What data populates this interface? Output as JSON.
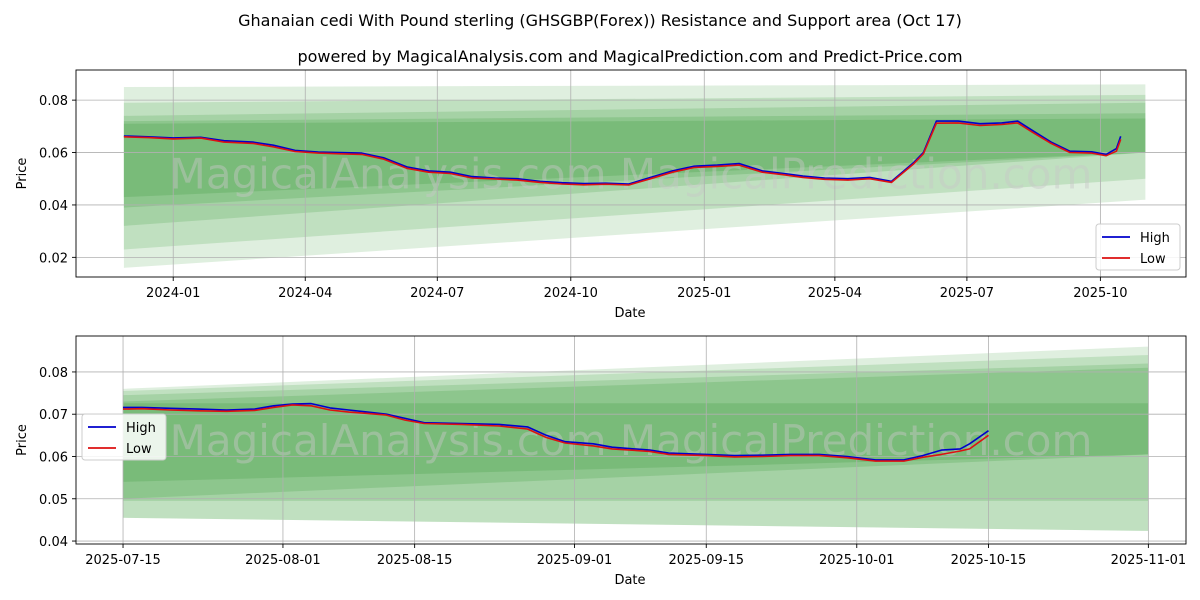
{
  "figure": {
    "title": "Ghanaian cedi With Pound sterling (GHSGBP(Forex)) Resistance and Support area (Oct 17)",
    "subtitle": "powered by MagicalAnalysis.com and MagicalPrediction.com and Predict-Price.com",
    "watermark": "MagicalAnalysis.com   MagicalPrediction.com"
  },
  "colors": {
    "high": "#0000cc",
    "low": "#dd1111",
    "band": "#3a9a3a",
    "grid": "#b0b0b0"
  },
  "chart_data": [
    {
      "type": "line",
      "title": "",
      "xlabel": "Date",
      "ylabel": "Price",
      "x_ticks": [
        "2024-01",
        "2024-04",
        "2024-07",
        "2024-10",
        "2025-01",
        "2025-04",
        "2025-07",
        "2025-10"
      ],
      "y_ticks": [
        "0.02",
        "0.04",
        "0.06",
        "0.08"
      ],
      "xlim": [
        "2023-10-26",
        "2025-11-29"
      ],
      "ylim": [
        0.0125,
        0.0915
      ],
      "grid": true,
      "legend": "lower-right",
      "legend_entries": [
        "High",
        "Low"
      ],
      "bands": {
        "start": "2023-11-28",
        "end": "2025-11-01",
        "start_ranges": [
          [
            0.016,
            0.085
          ],
          [
            0.023,
            0.079
          ],
          [
            0.032,
            0.074
          ],
          [
            0.039,
            0.072
          ],
          [
            0.043,
            0.071
          ]
        ],
        "end_ranges": [
          [
            0.042,
            0.086
          ],
          [
            0.05,
            0.082
          ],
          [
            0.06,
            0.079
          ],
          [
            0.06,
            0.075
          ],
          [
            0.06,
            0.073
          ]
        ]
      },
      "x": [
        "2023-11-28",
        "2023-12-15",
        "2024-01-01",
        "2024-01-20",
        "2024-02-05",
        "2024-02-25",
        "2024-03-10",
        "2024-03-25",
        "2024-04-10",
        "2024-04-25",
        "2024-05-10",
        "2024-05-25",
        "2024-06-10",
        "2024-06-25",
        "2024-07-10",
        "2024-07-25",
        "2024-08-10",
        "2024-08-25",
        "2024-09-10",
        "2024-09-25",
        "2024-10-10",
        "2024-10-25",
        "2024-11-10",
        "2024-11-25",
        "2024-12-10",
        "2024-12-25",
        "2025-01-10",
        "2025-01-25",
        "2025-02-10",
        "2025-02-25",
        "2025-03-10",
        "2025-03-25",
        "2025-04-10",
        "2025-04-25",
        "2025-05-10",
        "2025-05-25",
        "2025-06-01",
        "2025-06-10",
        "2025-06-25",
        "2025-07-10",
        "2025-07-25",
        "2025-08-05",
        "2025-08-15",
        "2025-08-28",
        "2025-09-10",
        "2025-09-25",
        "2025-10-05",
        "2025-10-12",
        "2025-10-15"
      ],
      "series": [
        {
          "name": "High",
          "values": [
            0.0663,
            0.066,
            0.0656,
            0.0658,
            0.0645,
            0.064,
            0.0628,
            0.0608,
            0.0602,
            0.06,
            0.0598,
            0.058,
            0.0545,
            0.053,
            0.0525,
            0.0508,
            0.0503,
            0.05,
            0.049,
            0.0485,
            0.0482,
            0.0483,
            0.048,
            0.0505,
            0.053,
            0.0548,
            0.0552,
            0.0558,
            0.053,
            0.052,
            0.051,
            0.0503,
            0.05,
            0.0505,
            0.049,
            0.056,
            0.06,
            0.072,
            0.072,
            0.071,
            0.0713,
            0.072,
            0.0685,
            0.064,
            0.0605,
            0.0603,
            0.0593,
            0.0615,
            0.0662
          ]
        },
        {
          "name": "Low",
          "values": [
            0.066,
            0.0657,
            0.0652,
            0.0655,
            0.064,
            0.0635,
            0.0622,
            0.0604,
            0.0598,
            0.0595,
            0.0593,
            0.0575,
            0.054,
            0.0525,
            0.052,
            0.0503,
            0.0499,
            0.0495,
            0.0486,
            0.048,
            0.0477,
            0.0479,
            0.0476,
            0.05,
            0.0525,
            0.0543,
            0.0547,
            0.0552,
            0.0525,
            0.0515,
            0.0505,
            0.0498,
            0.0495,
            0.05,
            0.0486,
            0.0555,
            0.0595,
            0.0712,
            0.0713,
            0.0703,
            0.0707,
            0.0713,
            0.0678,
            0.0635,
            0.06,
            0.0598,
            0.0588,
            0.0605,
            0.065
          ]
        }
      ]
    },
    {
      "type": "line",
      "title": "",
      "xlabel": "Date",
      "ylabel": "Price",
      "x_ticks": [
        "2025-07-15",
        "2025-08-01",
        "2025-08-15",
        "2025-09-01",
        "2025-09-15",
        "2025-10-01",
        "2025-10-15",
        "2025-11-01"
      ],
      "y_ticks": [
        "0.04",
        "0.05",
        "0.06",
        "0.07",
        "0.08"
      ],
      "xlim": [
        "2025-07-10",
        "2025-11-05"
      ],
      "ylim": [
        0.0393,
        0.0885
      ],
      "grid": true,
      "legend": "upper-left",
      "legend_entries": [
        "High",
        "Low"
      ],
      "bands": {
        "start": "2025-07-15",
        "end": "2025-11-01",
        "start_ranges": [
          [
            0.0455,
            0.076
          ],
          [
            0.0455,
            0.0755
          ],
          [
            0.0495,
            0.0745
          ],
          [
            0.05,
            0.073
          ],
          [
            0.054,
            0.0726
          ]
        ],
        "end_ranges": [
          [
            0.0424,
            0.086
          ],
          [
            0.0424,
            0.084
          ],
          [
            0.0495,
            0.082
          ],
          [
            0.0605,
            0.081
          ],
          [
            0.0605,
            0.0726
          ]
        ]
      },
      "x": [
        "2025-07-15",
        "2025-07-17",
        "2025-07-20",
        "2025-07-23",
        "2025-07-26",
        "2025-07-29",
        "2025-07-31",
        "2025-08-02",
        "2025-08-04",
        "2025-08-06",
        "2025-08-08",
        "2025-08-10",
        "2025-08-12",
        "2025-08-14",
        "2025-08-16",
        "2025-08-20",
        "2025-08-24",
        "2025-08-27",
        "2025-08-29",
        "2025-08-31",
        "2025-09-03",
        "2025-09-05",
        "2025-09-09",
        "2025-09-11",
        "2025-09-15",
        "2025-09-18",
        "2025-09-21",
        "2025-09-24",
        "2025-09-27",
        "2025-09-30",
        "2025-10-03",
        "2025-10-06",
        "2025-10-08",
        "2025-10-10",
        "2025-10-12",
        "2025-10-13",
        "2025-10-15"
      ],
      "series": [
        {
          "name": "High",
          "values": [
            0.0716,
            0.0716,
            0.0714,
            0.0712,
            0.071,
            0.0712,
            0.072,
            0.0724,
            0.0725,
            0.0715,
            0.071,
            0.0705,
            0.07,
            0.069,
            0.068,
            0.0678,
            0.0676,
            0.067,
            0.065,
            0.0635,
            0.063,
            0.0622,
            0.0615,
            0.0608,
            0.0605,
            0.0602,
            0.0603,
            0.0605,
            0.0605,
            0.06,
            0.0592,
            0.0592,
            0.0602,
            0.0615,
            0.0618,
            0.063,
            0.0661
          ]
        },
        {
          "name": "Low",
          "values": [
            0.0712,
            0.0713,
            0.071,
            0.0708,
            0.0707,
            0.0709,
            0.0716,
            0.0722,
            0.072,
            0.071,
            0.0705,
            0.0702,
            0.0698,
            0.0686,
            0.0678,
            0.0676,
            0.0672,
            0.0665,
            0.0645,
            0.0632,
            0.0625,
            0.0618,
            0.0612,
            0.0605,
            0.0602,
            0.0599,
            0.06,
            0.0602,
            0.0602,
            0.0597,
            0.0589,
            0.0589,
            0.0598,
            0.0605,
            0.0613,
            0.0618,
            0.065
          ]
        }
      ]
    }
  ]
}
